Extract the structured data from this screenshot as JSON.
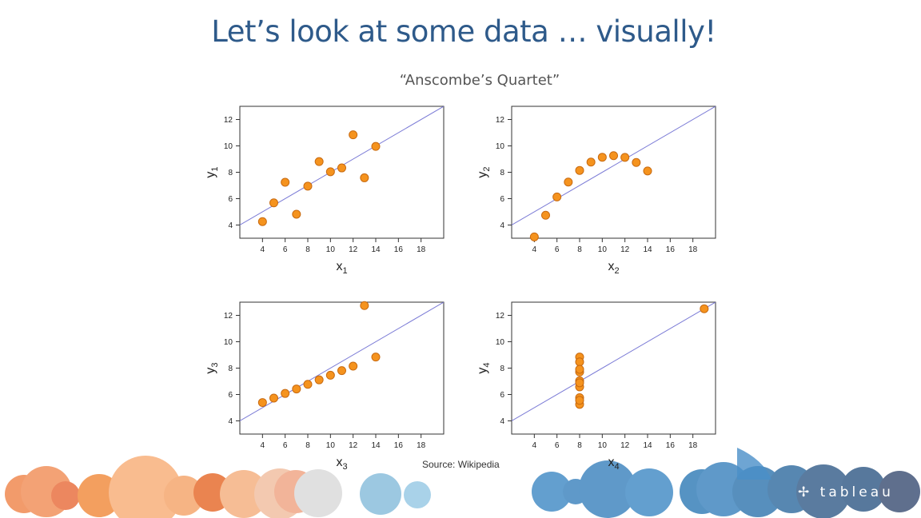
{
  "slide": {
    "title": "Let’s look at some data … visually!",
    "subtitle": "“Anscombe’s Quartet”",
    "source": "Source: Wikipedia",
    "logo_text": "tableau"
  },
  "colors": {
    "title": "#2e5a8a",
    "point_fill": "#f5931e",
    "point_stroke": "#c86a10",
    "fit_line": "#7b7bd6",
    "orange_bubbles": "#f08a3c",
    "blue_bubbles": "#2a78b8"
  },
  "chart_data": [
    {
      "type": "scatter",
      "xlabel": "x",
      "xlabel_sub": "1",
      "ylabel": "y",
      "ylabel_sub": "1",
      "xlim": [
        2,
        20
      ],
      "ylim": [
        3,
        13
      ],
      "xticks": [
        4,
        6,
        8,
        10,
        12,
        14,
        16,
        18
      ],
      "yticks": [
        4,
        6,
        8,
        10,
        12
      ],
      "x": [
        10,
        8,
        13,
        9,
        11,
        14,
        6,
        4,
        12,
        7,
        5
      ],
      "y": [
        8.04,
        6.95,
        7.58,
        8.81,
        8.33,
        9.96,
        7.24,
        4.26,
        10.84,
        4.82,
        5.68
      ],
      "fit_line": {
        "intercept": 3.0,
        "slope": 0.5
      }
    },
    {
      "type": "scatter",
      "xlabel": "x",
      "xlabel_sub": "2",
      "ylabel": "y",
      "ylabel_sub": "2",
      "xlim": [
        2,
        20
      ],
      "ylim": [
        3,
        13
      ],
      "xticks": [
        4,
        6,
        8,
        10,
        12,
        14,
        16,
        18
      ],
      "yticks": [
        4,
        6,
        8,
        10,
        12
      ],
      "x": [
        10,
        8,
        13,
        9,
        11,
        14,
        6,
        4,
        12,
        7,
        5
      ],
      "y": [
        9.14,
        8.14,
        8.74,
        8.77,
        9.26,
        8.1,
        6.13,
        3.1,
        9.13,
        7.26,
        4.74
      ],
      "fit_line": {
        "intercept": 3.0,
        "slope": 0.5
      }
    },
    {
      "type": "scatter",
      "xlabel": "x",
      "xlabel_sub": "3",
      "ylabel": "y",
      "ylabel_sub": "3",
      "xlim": [
        2,
        20
      ],
      "ylim": [
        3,
        13
      ],
      "xticks": [
        4,
        6,
        8,
        10,
        12,
        14,
        16,
        18
      ],
      "yticks": [
        4,
        6,
        8,
        10,
        12
      ],
      "x": [
        10,
        8,
        13,
        9,
        11,
        14,
        6,
        4,
        12,
        7,
        5
      ],
      "y": [
        7.46,
        6.77,
        12.74,
        7.11,
        7.81,
        8.84,
        6.08,
        5.39,
        8.15,
        6.42,
        5.73
      ],
      "fit_line": {
        "intercept": 3.0,
        "slope": 0.5
      }
    },
    {
      "type": "scatter",
      "xlabel": "x",
      "xlabel_sub": "4",
      "ylabel": "y",
      "ylabel_sub": "4",
      "xlim": [
        2,
        20
      ],
      "ylim": [
        3,
        13
      ],
      "xticks": [
        4,
        6,
        8,
        10,
        12,
        14,
        16,
        18
      ],
      "yticks": [
        4,
        6,
        8,
        10,
        12
      ],
      "x": [
        8,
        8,
        8,
        8,
        8,
        8,
        8,
        19,
        8,
        8,
        8
      ],
      "y": [
        6.58,
        5.76,
        7.71,
        8.84,
        8.47,
        7.04,
        5.25,
        12.5,
        5.56,
        7.91,
        6.89
      ],
      "fit_line": {
        "intercept": 3.0,
        "slope": 0.5
      }
    }
  ]
}
